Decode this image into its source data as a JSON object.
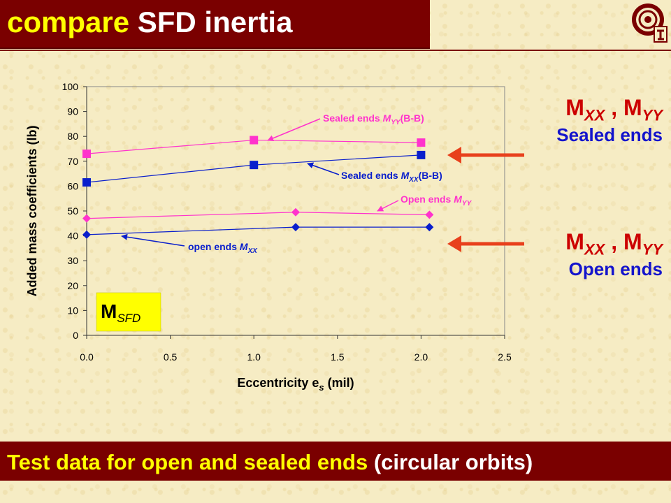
{
  "slide": {
    "title_keyword": "compare",
    "title_rest": " SFD inertia",
    "bottom_keyword": "Test data for open and sealed ends",
    "bottom_rest": " (circular orbits)"
  },
  "side_labels": {
    "sealed": {
      "m_main": "M",
      "xx_sub": "XX",
      "sep": " , ",
      "m_main2": "M",
      "yy_sub": "YY",
      "desc": "Sealed ends"
    },
    "open": {
      "m_main": "M",
      "xx_sub": "XX",
      "sep": " , ",
      "m_main2": "M",
      "yy_sub": "YY",
      "desc": "Open ends"
    }
  },
  "chart_data": {
    "type": "line",
    "title": "",
    "xlabel_main": "Eccentricity e",
    "xlabel_sub": "s",
    "xlabel_tail": " (mil)",
    "ylabel": "Added mass coefficients (lb)",
    "xlim": [
      0,
      2.5
    ],
    "ylim": [
      0,
      100
    ],
    "x_ticks": [
      "0.0",
      "0.5",
      "1.0",
      "1.5",
      "2.0",
      "2.5"
    ],
    "y_ticks": [
      "0",
      "10",
      "20",
      "30",
      "40",
      "50",
      "60",
      "70",
      "80",
      "90",
      "100"
    ],
    "grid": false,
    "inset_label": {
      "main": "M",
      "sub": "SFD"
    },
    "series": [
      {
        "key": "sealed_myy",
        "marker": "square",
        "color": "#ff33cc",
        "x": [
          0.0,
          1.0,
          2.0
        ],
        "y": [
          73,
          78.5,
          77.5
        ]
      },
      {
        "key": "sealed_mxx",
        "marker": "square",
        "color": "#0a1fcc",
        "x": [
          0.0,
          1.0,
          2.0
        ],
        "y": [
          61.5,
          68.5,
          72.5
        ]
      },
      {
        "key": "open_myy",
        "marker": "diamond",
        "color": "#ff33cc",
        "x": [
          0.0,
          1.25,
          2.05
        ],
        "y": [
          47,
          49.5,
          48.5
        ]
      },
      {
        "key": "open_mxx",
        "marker": "diamond",
        "color": "#0a1fcc",
        "x": [
          0.0,
          1.25,
          2.05
        ],
        "y": [
          40.5,
          43.5,
          43.5
        ]
      }
    ],
    "annotations": [
      {
        "key": "sealed_myy",
        "pre": "Sealed ends ",
        "m": "M",
        "sub": "YY",
        "post": "(B-B)",
        "color": "#ff33cc"
      },
      {
        "key": "sealed_mxx",
        "pre": "Sealed ends ",
        "m": "M",
        "sub": "XX",
        "post": "(B-B)",
        "color": "#0a1fcc"
      },
      {
        "key": "open_myy",
        "pre": "Open ends ",
        "m": "M",
        "sub": "YY",
        "post": "",
        "color": "#ff33cc"
      },
      {
        "key": "open_mxx",
        "pre": "open ends ",
        "m": "M",
        "sub": "XX",
        "post": "",
        "color": "#0a1fcc"
      }
    ]
  }
}
